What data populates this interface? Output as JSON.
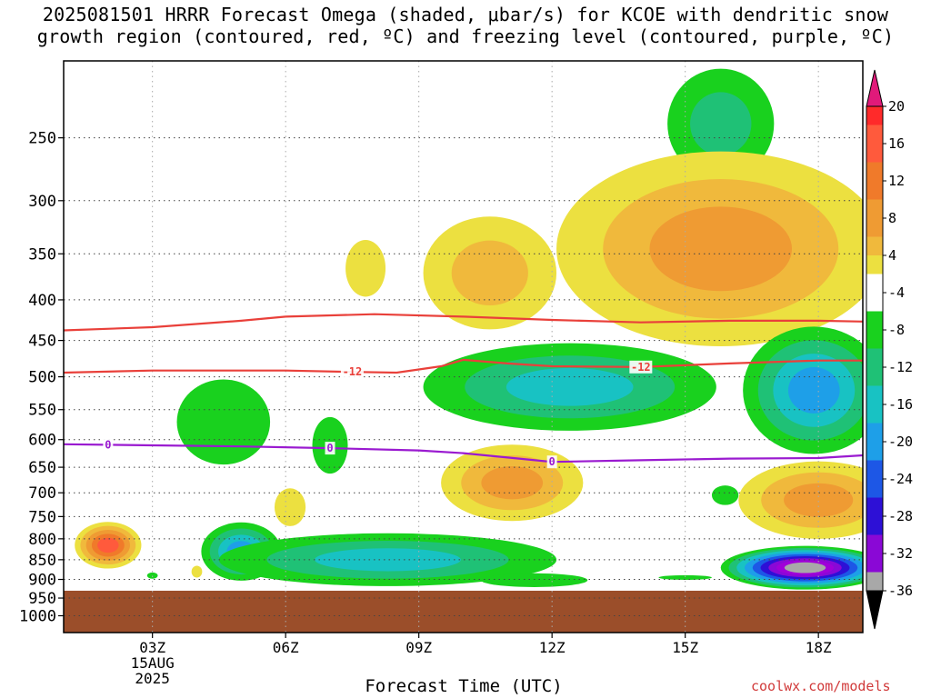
{
  "title": {
    "line1": "2025081501 HRRR Forecast Omega (shaded, μbar/s) for KCOE with dendritic snow",
    "line2": "growth region (contoured, red, ºC) and freezing level (contoured, purple, ºC)"
  },
  "xlabel": "Forecast Time (UTC)",
  "credit": "coolwx.com/models",
  "chart_data": {
    "type": "heatmap",
    "x_ticks": [
      {
        "hour": 3,
        "label": "03Z",
        "sub": [
          "15AUG",
          "2025"
        ]
      },
      {
        "hour": 6,
        "label": "06Z"
      },
      {
        "hour": 9,
        "label": "09Z"
      },
      {
        "hour": 12,
        "label": "12Z"
      },
      {
        "hour": 15,
        "label": "15Z"
      },
      {
        "hour": 18,
        "label": "18Z"
      }
    ],
    "xlim": [
      1,
      19
    ],
    "y_ticks": [
      250,
      300,
      350,
      400,
      450,
      500,
      550,
      600,
      650,
      700,
      750,
      800,
      850,
      900,
      950,
      1000
    ],
    "ylim_hpa": [
      200,
      1050
    ],
    "y_scale": "log-pressure",
    "grid": true,
    "colorbar": {
      "levels": [
        20,
        16,
        12,
        8,
        4,
        -4,
        -8,
        -12,
        -16,
        -20,
        -24,
        -28,
        -32,
        -36
      ],
      "colors": [
        "#ff2a2a",
        "#ff5a3c",
        "#f07a2a",
        "#ef9b33",
        "#f0b93c",
        "#ece040",
        "#ffffff",
        "#19d11e",
        "#1fc176",
        "#18c2c3",
        "#1e9fe8",
        "#1d57e6",
        "#2d10d6",
        "#8a08d6",
        "#a000d8",
        "#a8a8a8",
        "#000000"
      ],
      "top_arrow_color": "#e11a7a",
      "bottom_arrow_color": "#000000"
    },
    "ground_color": "#9b4e2a",
    "ground_top_hpa": 930,
    "blobs": [
      {
        "x": 2.0,
        "p": 815,
        "rx": 0.75,
        "rp": 55,
        "cat": "warm",
        "max": 20
      },
      {
        "x": 3.0,
        "p": 890,
        "rx": 0.12,
        "rp": 8,
        "cat": "cool",
        "max": -5
      },
      {
        "x": 4.0,
        "p": 880,
        "rx": 0.12,
        "rp": 15,
        "cat": "warm",
        "max": 5
      },
      {
        "x": 4.6,
        "p": 570,
        "rx": 1.05,
        "rp": 70,
        "cat": "cool",
        "max": -6
      },
      {
        "x": 5.0,
        "p": 830,
        "rx": 0.9,
        "rp": 70,
        "cat": "cool",
        "max": -16
      },
      {
        "x": 7.0,
        "p": 610,
        "rx": 0.4,
        "rp": 50,
        "cat": "cool",
        "max": -6
      },
      {
        "x": 6.1,
        "p": 730,
        "rx": 0.35,
        "rp": 40,
        "cat": "warm",
        "max": 5
      },
      {
        "x": 7.8,
        "p": 365,
        "rx": 0.45,
        "rp": 30,
        "cat": "warm",
        "max": 5
      },
      {
        "x": 8.3,
        "p": 850,
        "rx": 3.8,
        "rp": 65,
        "cat": "cool",
        "max": -13
      },
      {
        "x": 10.6,
        "p": 370,
        "rx": 1.5,
        "rp": 60,
        "cat": "warm",
        "max": 11
      },
      {
        "x": 11.1,
        "p": 680,
        "rx": 1.6,
        "rp": 75,
        "cat": "warm",
        "max": 15
      },
      {
        "x": 11.6,
        "p": 902,
        "rx": 1.2,
        "rp": 18,
        "cat": "cool",
        "max": -6
      },
      {
        "x": 12.4,
        "p": 515,
        "rx": 3.3,
        "rp": 65,
        "cat": "cool",
        "max": -12
      },
      {
        "x": 15.8,
        "p": 240,
        "rx": 1.2,
        "rp": 38,
        "cat": "cool",
        "max": -10
      },
      {
        "x": 15.8,
        "p": 345,
        "rx": 3.7,
        "rp": 95,
        "cat": "warm",
        "max": 15
      },
      {
        "x": 15.9,
        "p": 705,
        "rx": 0.3,
        "rp": 20,
        "cat": "cool",
        "max": -6
      },
      {
        "x": 15.0,
        "p": 895,
        "rx": 0.6,
        "rp": 6,
        "cat": "cool",
        "max": -6
      },
      {
        "x": 17.9,
        "p": 520,
        "rx": 1.6,
        "rp": 95,
        "cat": "cool",
        "max": -16
      },
      {
        "x": 18.0,
        "p": 715,
        "rx": 1.8,
        "rp": 80,
        "cat": "warm",
        "max": 12
      },
      {
        "x": 17.7,
        "p": 870,
        "rx": 1.9,
        "rp": 55,
        "cat": "cool",
        "max": -36
      }
    ],
    "contours": [
      {
        "name": "dgz_top",
        "color": "#e9403a",
        "label": "",
        "points": [
          [
            1,
            437
          ],
          [
            3,
            433
          ],
          [
            5,
            425
          ],
          [
            6,
            420
          ],
          [
            8,
            417
          ],
          [
            10,
            420
          ],
          [
            12,
            424
          ],
          [
            14,
            427
          ],
          [
            16,
            425
          ],
          [
            18,
            425
          ],
          [
            19,
            426
          ]
        ]
      },
      {
        "name": "dgz_bottom",
        "color": "#e9403a",
        "label": "-12",
        "label_x": [
          7.5,
          14.0
        ],
        "points": [
          [
            1,
            494
          ],
          [
            3,
            491
          ],
          [
            6,
            491
          ],
          [
            7.5,
            493
          ],
          [
            8.5,
            494
          ],
          [
            9.5,
            485
          ],
          [
            10,
            476
          ],
          [
            11,
            481
          ],
          [
            12,
            485
          ],
          [
            14,
            486
          ],
          [
            16,
            481
          ],
          [
            18,
            477
          ],
          [
            19,
            477
          ]
        ]
      },
      {
        "name": "freezing_level",
        "color": "#9a1ad0",
        "label": "0",
        "label_x": [
          2.0,
          7.0,
          12.0
        ],
        "points": [
          [
            1,
            608
          ],
          [
            3,
            610
          ],
          [
            5,
            612
          ],
          [
            7,
            615
          ],
          [
            9,
            619
          ],
          [
            10,
            624
          ],
          [
            11,
            632
          ],
          [
            12,
            640
          ],
          [
            14,
            637
          ],
          [
            16,
            634
          ],
          [
            18,
            633
          ],
          [
            19,
            628
          ]
        ]
      }
    ]
  }
}
